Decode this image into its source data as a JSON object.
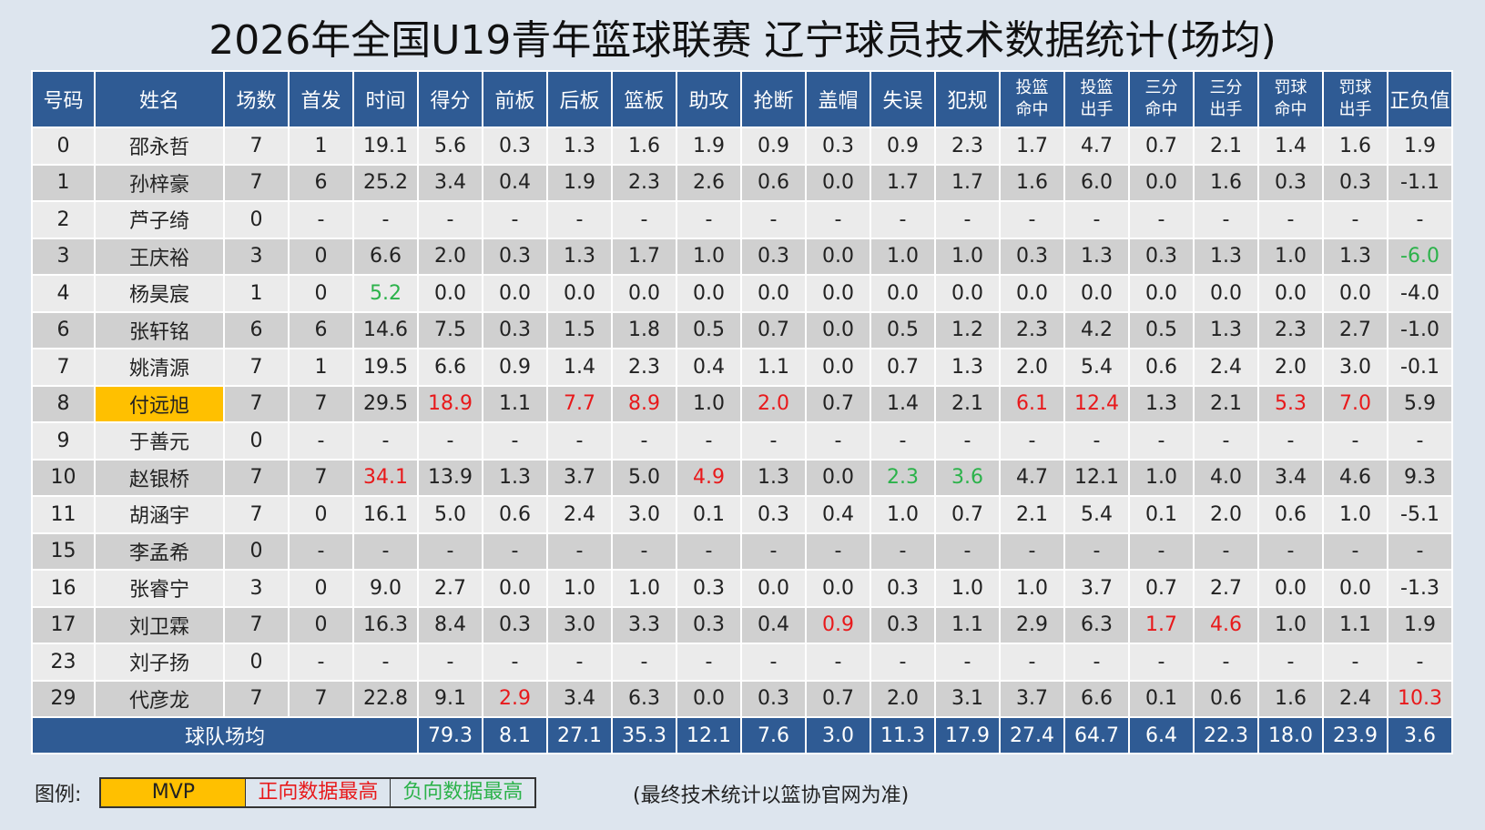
{
  "title": "2026年全国U19青年篮球联赛 辽宁球员技术数据统计(场均)",
  "table": {
    "headers": [
      [
        "号码"
      ],
      [
        "姓名"
      ],
      [
        "场数"
      ],
      [
        "首发"
      ],
      [
        "时间"
      ],
      [
        "得分"
      ],
      [
        "前板"
      ],
      [
        "后板"
      ],
      [
        "篮板"
      ],
      [
        "助攻"
      ],
      [
        "抢断"
      ],
      [
        "盖帽"
      ],
      [
        "失误"
      ],
      [
        "犯规"
      ],
      [
        "投篮",
        "命中"
      ],
      [
        "投篮",
        "出手"
      ],
      [
        "三分",
        "命中"
      ],
      [
        "三分",
        "出手"
      ],
      [
        "罚球",
        "命中"
      ],
      [
        "罚球",
        "出手"
      ],
      [
        "正负值"
      ]
    ],
    "rows": [
      [
        "0",
        "邵永哲",
        "7",
        "1",
        "19.1",
        "5.6",
        "0.3",
        "1.3",
        "1.6",
        "1.9",
        "0.9",
        "0.3",
        "0.9",
        "2.3",
        "1.7",
        "4.7",
        "0.7",
        "2.1",
        "1.4",
        "1.6",
        "1.9"
      ],
      [
        "1",
        "孙梓豪",
        "7",
        "6",
        "25.2",
        "3.4",
        "0.4",
        "1.9",
        "2.3",
        "2.6",
        "0.6",
        "0.0",
        "1.7",
        "1.7",
        "1.6",
        "6.0",
        "0.0",
        "1.6",
        "0.3",
        "0.3",
        "-1.1"
      ],
      [
        "2",
        "芦子绮",
        "0",
        "-",
        "-",
        "-",
        "-",
        "-",
        "-",
        "-",
        "-",
        "-",
        "-",
        "-",
        "-",
        "-",
        "-",
        "-",
        "-",
        "-",
        "-"
      ],
      [
        "3",
        "王庆裕",
        "3",
        "0",
        "6.6",
        "2.0",
        "0.3",
        "1.3",
        "1.7",
        "1.0",
        "0.3",
        "0.0",
        "1.0",
        "1.0",
        "0.3",
        "1.3",
        "0.3",
        "1.3",
        "1.0",
        "1.3",
        {
          "text": "-6.0",
          "tone": "worst"
        }
      ],
      [
        "4",
        "杨昊宸",
        "1",
        "0",
        {
          "text": "5.2",
          "tone": "worst"
        },
        "0.0",
        "0.0",
        "0.0",
        "0.0",
        "0.0",
        "0.0",
        "0.0",
        "0.0",
        "0.0",
        "0.0",
        "0.0",
        "0.0",
        "0.0",
        "0.0",
        "0.0",
        "-4.0"
      ],
      [
        "6",
        "张轩铭",
        "6",
        "6",
        "14.6",
        "7.5",
        "0.3",
        "1.5",
        "1.8",
        "0.5",
        "0.7",
        "0.0",
        "0.5",
        "1.2",
        "2.3",
        "4.2",
        "0.5",
        "1.3",
        "2.3",
        "2.7",
        "-1.0"
      ],
      [
        "7",
        "姚清源",
        "7",
        "1",
        "19.5",
        "6.6",
        "0.9",
        "1.4",
        "2.3",
        "0.4",
        "1.1",
        "0.0",
        "0.7",
        "1.3",
        "2.0",
        "5.4",
        "0.6",
        "2.4",
        "2.0",
        "3.0",
        "-0.1"
      ],
      [
        "8",
        {
          "text": "付远旭",
          "tone": "mvp"
        },
        "7",
        "7",
        "29.5",
        {
          "text": "18.9",
          "tone": "best"
        },
        "1.1",
        {
          "text": "7.7",
          "tone": "best"
        },
        {
          "text": "8.9",
          "tone": "best"
        },
        "1.0",
        {
          "text": "2.0",
          "tone": "best"
        },
        "0.7",
        "1.4",
        "2.1",
        {
          "text": "6.1",
          "tone": "best"
        },
        {
          "text": "12.4",
          "tone": "best"
        },
        "1.3",
        "2.1",
        {
          "text": "5.3",
          "tone": "best"
        },
        {
          "text": "7.0",
          "tone": "best"
        },
        "5.9"
      ],
      [
        "9",
        "于善元",
        "0",
        "-",
        "-",
        "-",
        "-",
        "-",
        "-",
        "-",
        "-",
        "-",
        "-",
        "-",
        "-",
        "-",
        "-",
        "-",
        "-",
        "-",
        "-"
      ],
      [
        "10",
        "赵银桥",
        "7",
        "7",
        {
          "text": "34.1",
          "tone": "best"
        },
        "13.9",
        "1.3",
        "3.7",
        "5.0",
        {
          "text": "4.9",
          "tone": "best"
        },
        "1.3",
        "0.0",
        {
          "text": "2.3",
          "tone": "worst"
        },
        {
          "text": "3.6",
          "tone": "worst"
        },
        "4.7",
        "12.1",
        "1.0",
        "4.0",
        "3.4",
        "4.6",
        "9.3"
      ],
      [
        "11",
        "胡涵宇",
        "7",
        "0",
        "16.1",
        "5.0",
        "0.6",
        "2.4",
        "3.0",
        "0.1",
        "0.3",
        "0.4",
        "1.0",
        "0.7",
        "2.1",
        "5.4",
        "0.1",
        "2.0",
        "0.6",
        "1.0",
        "-5.1"
      ],
      [
        "15",
        "李孟希",
        "0",
        "-",
        "-",
        "-",
        "-",
        "-",
        "-",
        "-",
        "-",
        "-",
        "-",
        "-",
        "-",
        "-",
        "-",
        "-",
        "-",
        "-",
        "-"
      ],
      [
        "16",
        "张睿宁",
        "3",
        "0",
        "9.0",
        "2.7",
        "0.0",
        "1.0",
        "1.0",
        "0.3",
        "0.0",
        "0.0",
        "0.3",
        "1.0",
        "1.0",
        "3.7",
        "0.7",
        "2.7",
        "0.0",
        "0.0",
        "-1.3"
      ],
      [
        "17",
        "刘卫霖",
        "7",
        "0",
        "16.3",
        "8.4",
        "0.3",
        "3.0",
        "3.3",
        "0.3",
        "0.4",
        {
          "text": "0.9",
          "tone": "best"
        },
        "0.3",
        "1.1",
        "2.9",
        "6.3",
        {
          "text": "1.7",
          "tone": "best"
        },
        {
          "text": "4.6",
          "tone": "best"
        },
        "1.0",
        "1.1",
        "1.9"
      ],
      [
        "23",
        "刘子扬",
        "0",
        "-",
        "-",
        "-",
        "-",
        "-",
        "-",
        "-",
        "-",
        "-",
        "-",
        "-",
        "-",
        "-",
        "-",
        "-",
        "-",
        "-",
        "-"
      ],
      [
        "29",
        "代彦龙",
        "7",
        "7",
        "22.8",
        "9.1",
        {
          "text": "2.9",
          "tone": "best"
        },
        "3.4",
        "6.3",
        "0.0",
        "0.3",
        "0.7",
        "2.0",
        "3.1",
        "3.7",
        "6.6",
        "0.1",
        "0.6",
        "1.6",
        "2.4",
        {
          "text": "10.3",
          "tone": "best"
        }
      ]
    ],
    "footer": {
      "label": "球队场均",
      "values": [
        "79.3",
        "8.1",
        "27.1",
        "35.3",
        "12.1",
        "7.6",
        "3.0",
        "11.3",
        "17.9",
        "27.4",
        "64.7",
        "6.4",
        "22.3",
        "18.0",
        "23.9",
        "3.6"
      ]
    }
  },
  "legend": {
    "label": "图例:",
    "items": [
      {
        "text": "MVP",
        "tone": "mvp"
      },
      {
        "text": "正向数据最高",
        "tone": "best"
      },
      {
        "text": "负向数据最高",
        "tone": "worst"
      }
    ]
  },
  "note": "(最终技术统计以篮协官网为准)"
}
